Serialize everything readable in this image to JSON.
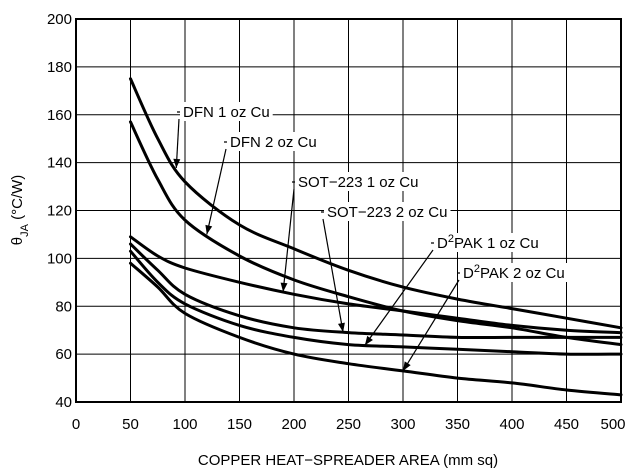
{
  "chart_data": {
    "type": "line",
    "xlabel": "COPPER HEAT−SPREADER AREA (mm sq)",
    "ylabel": "θJA (°C/W)",
    "ylabel_symbol": "θ",
    "ylabel_subscript": "JA",
    "ylabel_unit": " (°C/W)",
    "xlim": [
      0,
      500
    ],
    "ylim": [
      40,
      200
    ],
    "x_ticks": [
      "0",
      "50",
      "100",
      "150",
      "200",
      "250",
      "300",
      "350",
      "400",
      "450",
      "500"
    ],
    "y_ticks": [
      "40",
      "60",
      "80",
      "100",
      "120",
      "140",
      "160",
      "180",
      "200"
    ],
    "grid": true,
    "series": [
      {
        "name": "DFN 1 oz Cu",
        "x": [
          50,
          75,
          100,
          150,
          200,
          250,
          300,
          350,
          400,
          450,
          500
        ],
        "y": [
          175,
          150,
          132,
          114,
          104,
          95,
          88,
          83,
          79,
          75,
          71
        ]
      },
      {
        "name": "DFN 2 oz Cu",
        "x": [
          50,
          75,
          100,
          150,
          200,
          250,
          300,
          350,
          400,
          450,
          500
        ],
        "y": [
          157,
          133,
          116,
          101,
          91,
          84,
          78,
          74,
          71,
          67,
          64
        ]
      },
      {
        "name": "SOT−223 1 oz Cu",
        "x": [
          50,
          75,
          100,
          150,
          200,
          250,
          300,
          350,
          400,
          450,
          500
        ],
        "y": [
          109,
          101,
          96,
          90,
          85,
          81,
          78,
          75,
          72,
          70,
          69
        ]
      },
      {
        "name": "SOT−223 2 oz Cu",
        "x": [
          50,
          75,
          100,
          150,
          200,
          250,
          300,
          350,
          400,
          450,
          500
        ],
        "y": [
          106,
          95,
          85,
          76,
          71,
          69,
          68,
          67,
          67,
          67,
          67
        ]
      },
      {
        "name": "D2PAK 1 oz Cu",
        "label_base": "D",
        "label_sup": "2",
        "label_rest": "PAK 1 oz Cu",
        "x": [
          50,
          75,
          100,
          150,
          200,
          250,
          300,
          350,
          400,
          450,
          500
        ],
        "y": [
          103,
          90,
          81,
          72,
          67,
          64,
          63,
          62,
          61,
          60,
          60
        ]
      },
      {
        "name": "D2PAK 2 oz Cu",
        "label_base": "D",
        "label_sup": "2",
        "label_rest": "PAK 2 oz Cu",
        "x": [
          50,
          75,
          100,
          150,
          200,
          250,
          300,
          350,
          400,
          450,
          500
        ],
        "y": [
          98,
          88,
          77,
          67,
          60,
          56,
          53,
          50,
          48,
          45,
          43
        ]
      }
    ]
  }
}
